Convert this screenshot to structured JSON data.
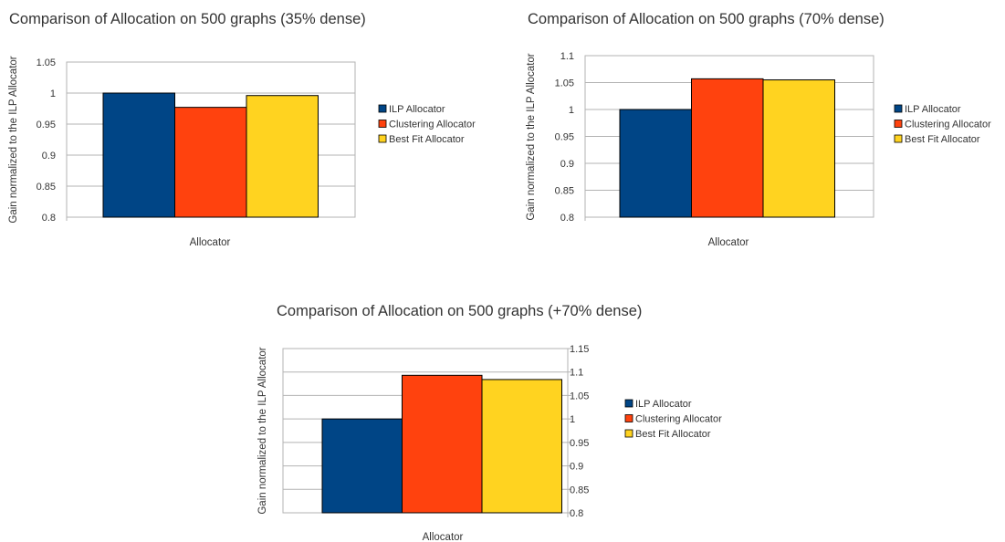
{
  "chart_data": [
    {
      "type": "bar",
      "title": "Comparison of Allocation on 500 graphs (35% dense)",
      "xlabel": "Allocator",
      "ylabel": "Gain normalized to the ILP Allocator",
      "categories": [
        ""
      ],
      "ylim": [
        0.8,
        1.05
      ],
      "yticks": [
        0.8,
        0.85,
        0.9,
        0.95,
        1,
        1.05
      ],
      "yaxis_side": "left",
      "grid": true,
      "legend_position": "right",
      "series": [
        {
          "name": "ILP Allocator",
          "color": "#004586",
          "values": [
            1.0
          ]
        },
        {
          "name": "Clustering Allocator",
          "color": "#ff420e",
          "values": [
            0.977
          ]
        },
        {
          "name": "Best Fit Allocator",
          "color": "#ffd320",
          "values": [
            0.996
          ]
        }
      ]
    },
    {
      "type": "bar",
      "title": "Comparison of Allocation on 500 graphs (70% dense)",
      "xlabel": "Allocator",
      "ylabel": "Gain normalized to the ILP Allocator",
      "categories": [
        ""
      ],
      "ylim": [
        0.8,
        1.1
      ],
      "yticks": [
        0.8,
        0.85,
        0.9,
        0.95,
        1,
        1.05,
        1.1
      ],
      "yaxis_side": "left",
      "grid": true,
      "legend_position": "right",
      "series": [
        {
          "name": "ILP Allocator",
          "color": "#004586",
          "values": [
            1.0
          ]
        },
        {
          "name": "Clustering Allocator",
          "color": "#ff420e",
          "values": [
            1.057
          ]
        },
        {
          "name": "Best Fit Allocator",
          "color": "#ffd320",
          "values": [
            1.055
          ]
        }
      ]
    },
    {
      "type": "bar",
      "title": "Comparison of Allocation on 500 graphs (+70% dense)",
      "xlabel": "Allocator",
      "ylabel": "Gain normalized to the ILP Allocator",
      "categories": [
        ""
      ],
      "ylim": [
        0.8,
        1.15
      ],
      "yticks": [
        0.8,
        0.85,
        0.9,
        0.95,
        1,
        1.05,
        1.1,
        1.15
      ],
      "yaxis_side": "right",
      "grid": true,
      "legend_position": "right",
      "series": [
        {
          "name": "ILP Allocator",
          "color": "#004586",
          "values": [
            1.0
          ]
        },
        {
          "name": "Clustering Allocator",
          "color": "#ff420e",
          "values": [
            1.093
          ]
        },
        {
          "name": "Best Fit Allocator",
          "color": "#ffd320",
          "values": [
            1.084
          ]
        }
      ]
    }
  ]
}
